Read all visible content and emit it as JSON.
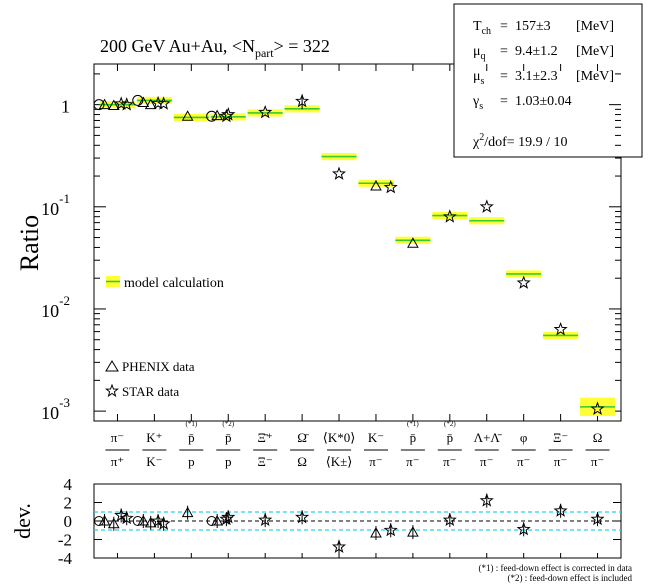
{
  "chart_data": {
    "type": "scatter",
    "title_prefix": "200 GeV Au+Au, <N",
    "title_sub": "part",
    "title_suffix": "> = 322",
    "ylabel": "Ratio",
    "yscale": "log",
    "ylim": [
      0.0008,
      2.5
    ],
    "y_tick_labels": [
      {
        "value": 1,
        "base": "1",
        "exp": ""
      },
      {
        "value": 0.1,
        "base": "10",
        "exp": "-1"
      },
      {
        "value": 0.01,
        "base": "10",
        "exp": "-2"
      },
      {
        "value": 0.001,
        "base": "10",
        "exp": "-3"
      }
    ],
    "categories": [
      {
        "num": "π⁻",
        "den": "π⁺",
        "note": ""
      },
      {
        "num": "K⁺",
        "den": "K⁻",
        "note": ""
      },
      {
        "num": "p̄",
        "den": "p",
        "note": "(*1)"
      },
      {
        "num": "p̄",
        "den": "p",
        "note": "(*2)"
      },
      {
        "num": "Ξ̄⁺",
        "den": "Ξ⁻",
        "note": ""
      },
      {
        "num": "Ω̄",
        "den": "Ω",
        "note": ""
      },
      {
        "num": "⟨K*0⟩",
        "den": "⟨K±⟩",
        "note": ""
      },
      {
        "num": "K⁻",
        "den": "π⁻",
        "note": ""
      },
      {
        "num": "p̄",
        "den": "π⁻",
        "note": "(*1)"
      },
      {
        "num": "p̄",
        "den": "π⁻",
        "note": "(*2)"
      },
      {
        "num": "Λ+Λ̄",
        "den": "π⁻",
        "note": ""
      },
      {
        "num": "φ",
        "den": "π⁻",
        "note": ""
      },
      {
        "num": "Ξ⁻",
        "den": "π⁻",
        "note": ""
      },
      {
        "num": "Ω",
        "den": "π⁻",
        "note": ""
      }
    ],
    "model": [
      {
        "cat": 0,
        "value": 1.0,
        "width": 0.95
      },
      {
        "cat": 1,
        "value": 1.1,
        "width": 0.95
      },
      {
        "cat": 2,
        "value": 0.75,
        "width": 0.95
      },
      {
        "cat": 3,
        "value": 0.76,
        "width": 0.95
      },
      {
        "cat": 4,
        "value": 0.83,
        "width": 0.95
      },
      {
        "cat": 5,
        "value": 0.91,
        "width": 0.95
      },
      {
        "cat": 6,
        "value": 0.31,
        "width": 0.95
      },
      {
        "cat": 7,
        "value": 0.17,
        "width": 0.95
      },
      {
        "cat": 8,
        "value": 0.047,
        "width": 0.95
      },
      {
        "cat": 9,
        "value": 0.082,
        "width": 0.95
      },
      {
        "cat": 10,
        "value": 0.073,
        "width": 0.95
      },
      {
        "cat": 11,
        "value": 0.022,
        "width": 0.95
      },
      {
        "cat": 12,
        "value": 0.0055,
        "width": 0.95
      },
      {
        "cat": 13,
        "value": 0.0011,
        "width": 0.95
      }
    ],
    "model_band_halfwidth_decades": 0.035,
    "model_band_halfwidth_decades_last": 0.09,
    "phenix": [
      {
        "x": -0.35,
        "y": 1.0,
        "dev": 0.0
      },
      {
        "x": -0.1,
        "y": 0.98,
        "dev": -0.3
      },
      {
        "x": 0.7,
        "y": 1.05,
        "dev": 0.0
      },
      {
        "x": 0.9,
        "y": 1.0,
        "dev": -0.2
      },
      {
        "x": 1.9,
        "y": 0.77,
        "dev": 0.9
      },
      {
        "x": 2.7,
        "y": 0.78,
        "dev": 0.0
      },
      {
        "x": 7.0,
        "y": 0.16,
        "dev": -1.3
      },
      {
        "x": 8.0,
        "y": 0.044,
        "dev": -1.2
      }
    ],
    "phenix_circles": [
      {
        "x": -0.5,
        "y": 1.0,
        "dev": 0.0
      },
      {
        "x": 0.55,
        "y": 1.1,
        "dev": 0.0
      },
      {
        "x": 2.55,
        "y": 0.77,
        "dev": 0.0
      }
    ],
    "star": [
      {
        "x": 0.1,
        "y": 1.02,
        "dev": 0.6
      },
      {
        "x": 0.25,
        "y": 1.0,
        "dev": 0.3
      },
      {
        "x": 1.1,
        "y": 1.03,
        "dev": 0.0
      },
      {
        "x": 1.25,
        "y": 1.02,
        "dev": -0.3
      },
      {
        "x": 3.0,
        "y": 0.8,
        "dev": 0.4
      },
      {
        "x": 2.95,
        "y": 0.77,
        "dev": 0.2
      },
      {
        "x": 4.0,
        "y": 0.84,
        "dev": 0.1
      },
      {
        "x": 5.0,
        "y": 1.08,
        "err": 0.18,
        "dev": 0.4
      },
      {
        "x": 6.0,
        "y": 0.21,
        "dev": -2.8
      },
      {
        "x": 7.4,
        "y": 0.155,
        "dev": -1.0
      },
      {
        "x": 9.0,
        "y": 0.08,
        "dev": 0.1
      },
      {
        "x": 10.0,
        "y": 0.1,
        "dev": 2.2
      },
      {
        "x": 11.0,
        "y": 0.018,
        "dev": -0.9
      },
      {
        "x": 12.0,
        "y": 0.0063,
        "dev": 1.1
      },
      {
        "x": 13.0,
        "y": 0.00105,
        "dev": 0.2
      }
    ],
    "params": [
      {
        "name": "T",
        "sub": "ch",
        "value": "157±3",
        "unit": "[MeV]"
      },
      {
        "name": "μ",
        "sub": "q",
        "value": "9.4±1.2",
        "unit": "[MeV]"
      },
      {
        "name": "μ",
        "sub": "s",
        "value": "3.1±2.3",
        "unit": "[MeV]"
      },
      {
        "name": "γ",
        "sub": "s",
        "value": "1.03±0.04",
        "unit": ""
      }
    ],
    "chi2_label": "/dof= 19.9 / 10",
    "chi2_symbol": "χ",
    "legend_model": "model calculation",
    "legend_phenix": "PHENIX data",
    "legend_star": "STAR data",
    "dev_label": "dev.",
    "dev_ylim": [
      -4,
      4
    ],
    "dev_ticks": [
      "4",
      "2",
      "0",
      "-2",
      "-4"
    ],
    "footnote1": "(*1) : feed-down effect is corrected in data",
    "footnote2": "(*2) : feed-down effect is included"
  }
}
